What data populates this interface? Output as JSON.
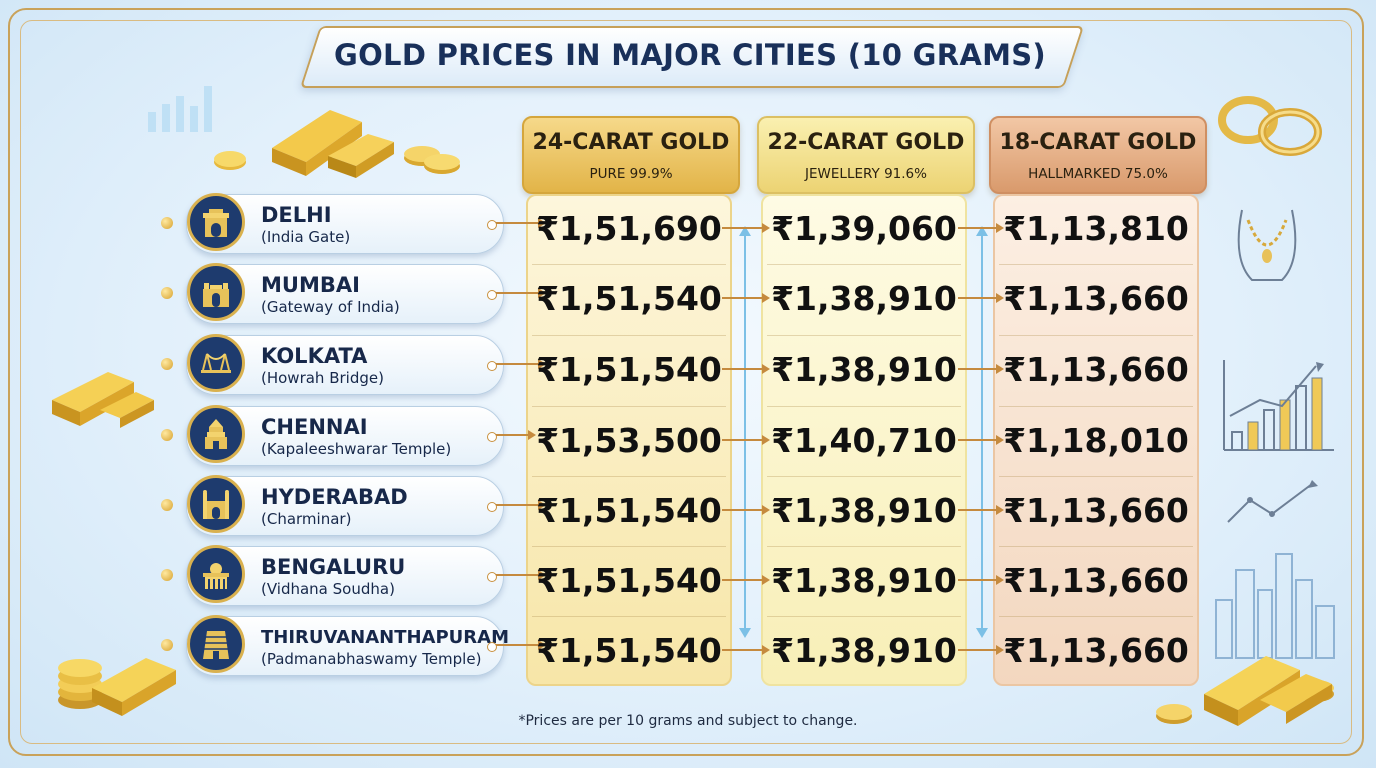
{
  "title": "GOLD PRICES IN MAJOR CITIES (10 GRAMS)",
  "columns": [
    {
      "title": "24-CARAT GOLD",
      "subtitle": "PURE 99.9%",
      "color": "#e2b448"
    },
    {
      "title": "22-CARAT GOLD",
      "subtitle": "JEWELLERY 91.6%",
      "color": "#ecd373"
    },
    {
      "title": "18-CARAT GOLD",
      "subtitle": "HALLMARKED 75.0%",
      "color": "#d99a6c"
    }
  ],
  "rows": [
    {
      "city": "DELHI",
      "landmark": "(India Gate)",
      "icon": "india-gate-icon",
      "prices": [
        "₹1,51,690",
        "₹1,39,060",
        "₹1,13,810"
      ]
    },
    {
      "city": "MUMBAI",
      "landmark": "(Gateway of India)",
      "icon": "gateway-of-india-icon",
      "prices": [
        "₹1,51,540",
        "₹1,38,910",
        "₹1,13,660"
      ]
    },
    {
      "city": "KOLKATA",
      "landmark": "(Howrah Bridge)",
      "icon": "howrah-bridge-icon",
      "prices": [
        "₹1,51,540",
        "₹1,38,910",
        "₹1,13,660"
      ]
    },
    {
      "city": "CHENNAI",
      "landmark": "(Kapaleeshwarar Temple)",
      "icon": "temple-icon",
      "prices": [
        "₹1,53,500",
        "₹1,40,710",
        "₹1,18,010"
      ]
    },
    {
      "city": "HYDERABAD",
      "landmark": "(Charminar)",
      "icon": "charminar-icon",
      "prices": [
        "₹1,51,540",
        "₹1,38,910",
        "₹1,13,660"
      ]
    },
    {
      "city": "BENGALURU",
      "landmark": "(Vidhana Soudha)",
      "icon": "vidhana-soudha-icon",
      "prices": [
        "₹1,51,540",
        "₹1,38,910",
        "₹1,13,660"
      ]
    },
    {
      "city": "THIRUVANANTHAPURAM",
      "landmark": "(Padmanabhaswamy Temple)",
      "icon": "padmanabhaswamy-temple-icon",
      "prices": [
        "₹1,51,540",
        "₹1,38,910",
        "₹1,13,660"
      ]
    }
  ],
  "footnote": "*Prices are per 10 grams and subject to change.",
  "colors": {
    "navy": "#19305a",
    "gold": "#d9b14f",
    "arrow": "#c58a3e"
  }
}
